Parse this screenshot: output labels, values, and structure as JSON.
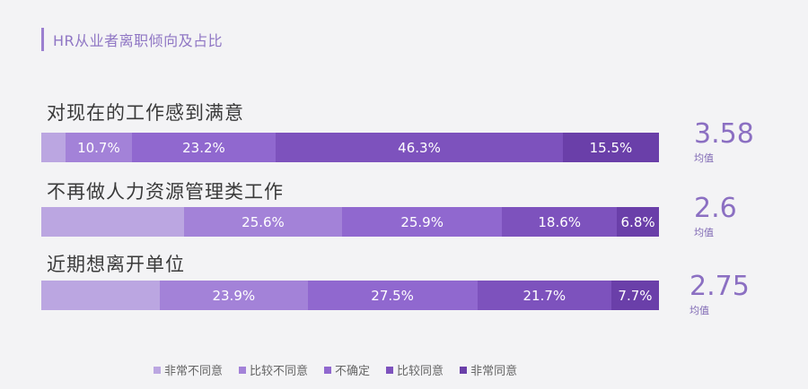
{
  "page_title": "HR从业者离职倾向及占比",
  "chart_data": {
    "type": "bar",
    "orientation": "horizontal",
    "stacked": true,
    "title": "HR从业者离职倾向及占比",
    "categories": [
      "对现在的工作感到满意",
      "不再做人力资源管理类工作",
      "近期想离开单位"
    ],
    "series": [
      {
        "name": "非常不同意",
        "color": "#bba6e1",
        "values": [
          3.9,
          23.1,
          19.2
        ]
      },
      {
        "name": "比较不同意",
        "color": "#a382d8",
        "values": [
          10.7,
          25.6,
          23.9
        ]
      },
      {
        "name": "不确定",
        "color": "#9068cf",
        "values": [
          23.2,
          25.9,
          27.5
        ]
      },
      {
        "name": "比较同意",
        "color": "#7d52bd",
        "values": [
          46.3,
          18.6,
          21.7
        ]
      },
      {
        "name": "非常同意",
        "color": "#6a3fa9",
        "values": [
          15.5,
          6.8,
          7.7
        ]
      }
    ],
    "value_labels": [
      [
        "",
        "10.7%",
        "23.2%",
        "46.3%",
        "15.5%"
      ],
      [
        "",
        "25.6%",
        "25.9%",
        "18.6%",
        "6.8%"
      ],
      [
        "",
        "23.9%",
        "27.5%",
        "21.7%",
        "7.7%"
      ]
    ],
    "means": [
      {
        "value": "3.58",
        "label": "均值"
      },
      {
        "value": "2.6",
        "label": "均值"
      },
      {
        "value": "2.75",
        "label": "均值"
      }
    ],
    "legend_position": "bottom"
  }
}
